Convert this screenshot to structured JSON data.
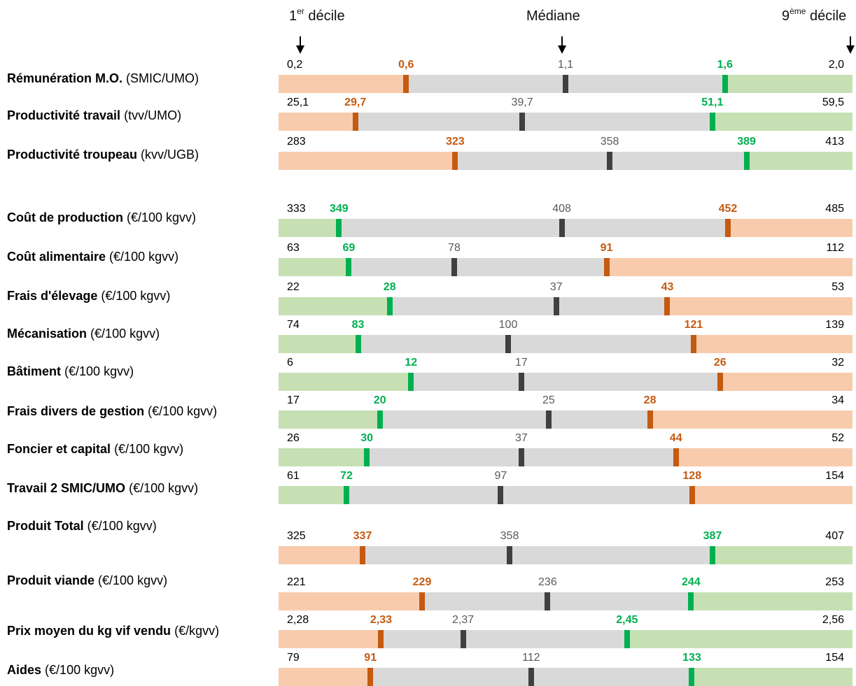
{
  "headers": {
    "d1_base": "1",
    "d1_sup": "er",
    "d1_rest": " décile",
    "median": "Médiane",
    "d9_base": "9",
    "d9_sup": "ème",
    "d9_rest": " décile"
  },
  "colors": {
    "gray": "#d9d9d9",
    "good_zone": "#c6e0b4",
    "bad_zone": "#f8cbad",
    "median_marker": "#404040",
    "good_marker": "#00b050",
    "bad_marker": "#c55a11"
  },
  "chart_data": {
    "type": "bullet-range",
    "rows": [
      {
        "name": "Rémunération M.O.",
        "unit": "(SMIC/UMO)",
        "min": 0.2,
        "low_q": 0.6,
        "median": 1.1,
        "high_q": 1.6,
        "max": 2.0,
        "min_label": "0,2",
        "low_label": "0,6",
        "median_label": "1,1",
        "high_label": "1,6",
        "max_label": "2,0",
        "higher_is_better": true
      },
      {
        "name": "Productivité travail",
        "unit": "(tvv/UMO)",
        "min": 25.1,
        "low_q": 29.7,
        "median": 39.7,
        "high_q": 51.1,
        "max": 59.5,
        "min_label": "25,1",
        "low_label": "29,7",
        "median_label": "39,7",
        "high_label": "51,1",
        "max_label": "59,5",
        "higher_is_better": true
      },
      {
        "name": "Productivité troupeau",
        "unit": "(kvv/UGB)",
        "min": 283,
        "low_q": 323,
        "median": 358,
        "high_q": 389,
        "max": 413,
        "min_label": "283",
        "low_label": "323",
        "median_label": "358",
        "high_label": "389",
        "max_label": "413",
        "higher_is_better": true
      },
      {
        "name": "Coût de production",
        "unit": "(€/100 kgvv)",
        "min": 333,
        "low_q": 349,
        "median": 408,
        "high_q": 452,
        "max": 485,
        "min_label": "333",
        "low_label": "349",
        "median_label": "408",
        "high_label": "452",
        "max_label": "485",
        "higher_is_better": false
      },
      {
        "name": "Coût alimentaire",
        "unit": "(€/100 kgvv)",
        "min": 63,
        "low_q": 69,
        "median": 78,
        "high_q": 91,
        "max": 112,
        "min_label": "63",
        "low_label": "69",
        "median_label": "78",
        "high_label": "91",
        "max_label": "112",
        "higher_is_better": false
      },
      {
        "name": "Frais d'élevage",
        "unit": "(€/100 kgvv)",
        "min": 22,
        "low_q": 28,
        "median": 37,
        "high_q": 43,
        "max": 53,
        "min_label": "22",
        "low_label": "28",
        "median_label": "37",
        "high_label": "43",
        "max_label": "53",
        "higher_is_better": false
      },
      {
        "name": "Mécanisation",
        "unit": "(€/100 kgvv)",
        "min": 74,
        "low_q": 83,
        "median": 100,
        "high_q": 121,
        "max": 139,
        "min_label": "74",
        "low_label": "83",
        "median_label": "100",
        "high_label": "121",
        "max_label": "139",
        "higher_is_better": false
      },
      {
        "name": "Bâtiment",
        "unit": "(€/100 kgvv)",
        "min": 6,
        "low_q": 12,
        "median": 17,
        "high_q": 26,
        "max": 32,
        "min_label": "6",
        "low_label": "12",
        "median_label": "17",
        "high_label": "26",
        "max_label": "32",
        "higher_is_better": false
      },
      {
        "name": "Frais divers de gestion",
        "unit": "(€/100 kgvv)",
        "min": 17,
        "low_q": 20,
        "median": 25,
        "high_q": 28,
        "max": 34,
        "min_label": "17",
        "low_label": "20",
        "median_label": "25",
        "high_label": "28",
        "max_label": "34",
        "higher_is_better": false
      },
      {
        "name": "Foncier et capital",
        "unit": "(€/100 kgvv)",
        "min": 26,
        "low_q": 30,
        "median": 37,
        "high_q": 44,
        "max": 52,
        "min_label": "26",
        "low_label": "30",
        "median_label": "37",
        "high_label": "44",
        "max_label": "52",
        "higher_is_better": false
      },
      {
        "name": "Travail 2 SMIC/UMO",
        "unit": "(€/100 kgvv)",
        "min": 61,
        "low_q": 72,
        "median": 97,
        "high_q": 128,
        "max": 154,
        "min_label": "61",
        "low_label": "72",
        "median_label": "97",
        "high_label": "128",
        "max_label": "154",
        "higher_is_better": false
      },
      {
        "name": "Produit Total",
        "unit": "(€/100 kgvv)",
        "min": 325,
        "low_q": 337,
        "median": 358,
        "high_q": 387,
        "max": 407,
        "min_label": "325",
        "low_label": "337",
        "median_label": "358",
        "high_label": "387",
        "max_label": "407",
        "higher_is_better": true
      },
      {
        "name": "Produit viande",
        "unit": "(€/100 kgvv)",
        "min": 221,
        "low_q": 229,
        "median": 236,
        "high_q": 244,
        "max": 253,
        "min_label": "221",
        "low_label": "229",
        "median_label": "236",
        "high_label": "244",
        "max_label": "253",
        "higher_is_better": true
      },
      {
        "name": "Prix moyen du kg vif vendu",
        "unit": "(€/kgvv)",
        "min": 2.28,
        "low_q": 2.33,
        "median": 2.37,
        "high_q": 2.45,
        "max": 2.56,
        "min_label": "2,28",
        "low_label": "2,33",
        "median_label": "2,37",
        "high_label": "2,45",
        "max_label": "2,56",
        "higher_is_better": true
      },
      {
        "name": "Aides",
        "unit": "(€/100 kgvv)",
        "min": 79,
        "low_q": 91,
        "median": 112,
        "high_q": 133,
        "max": 154,
        "min_label": "79",
        "low_label": "91",
        "median_label": "112",
        "high_label": "133",
        "max_label": "154",
        "higher_is_better": true
      }
    ]
  }
}
